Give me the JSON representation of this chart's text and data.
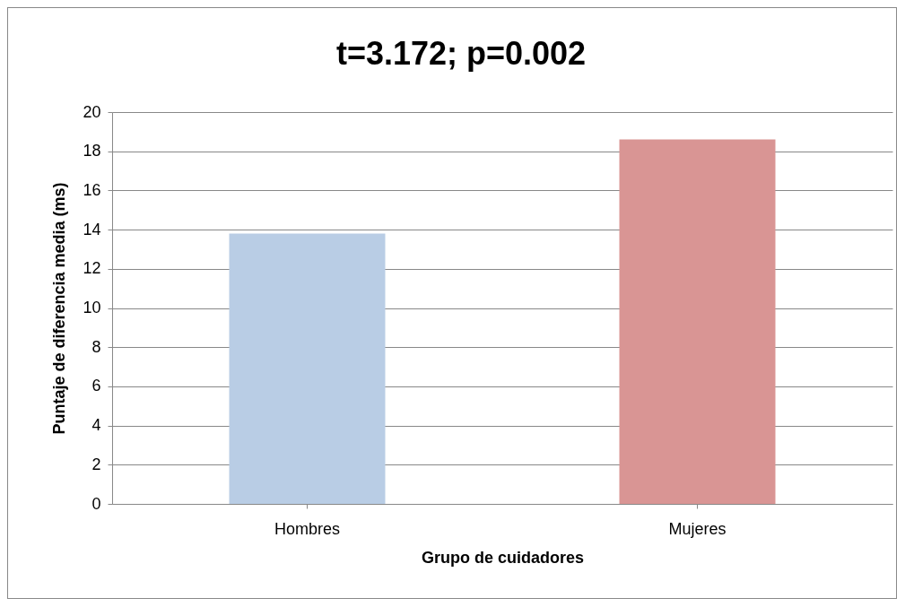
{
  "chart_data": {
    "type": "bar",
    "title": "t=3.172; p=0.002",
    "xlabel": "Grupo de cuidadores",
    "ylabel": "Puntaje de diferencia media (ms)",
    "categories": [
      "Hombres",
      "Mujeres"
    ],
    "values": [
      13.8,
      18.6
    ],
    "colors": [
      "#b9cde5",
      "#d99594"
    ],
    "ylim": [
      0,
      20
    ],
    "yticks": [
      0,
      2,
      4,
      6,
      8,
      10,
      12,
      14,
      16,
      18,
      20
    ],
    "grid": "y"
  }
}
